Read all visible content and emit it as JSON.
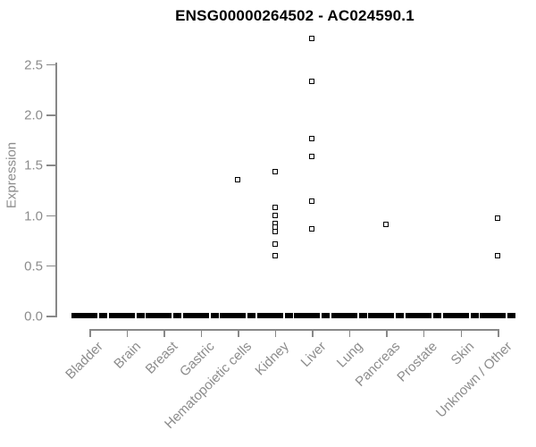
{
  "title": "ENSG00000264502 - AC024590.1",
  "colors": {
    "title": "#000000",
    "axis": "#888888",
    "axis_text": "#8c8c8c",
    "point_border": "#000000",
    "point_fill": "#ffffff",
    "zero_bar": "#000000",
    "background": "#ffffff"
  },
  "chart_data": {
    "type": "scatter",
    "title": "ENSG00000264502 - AC024590.1",
    "xlabel": "",
    "ylabel": "Expression",
    "ylim": [
      0,
      2.8
    ],
    "yticks": [
      "0.0",
      "0.5",
      "1.0",
      "1.5",
      "2.0",
      "2.5"
    ],
    "grid": false,
    "legend": "none",
    "point_marker": "open-square",
    "zero_cluster_note": "every category shows a dense cluster of points at expression 0, drawn as a thick dashed black bar",
    "categories": [
      "Bladder",
      "Brain",
      "Breast",
      "Gastric",
      "Hematopoietic cells",
      "Kidney",
      "Liver",
      "Lung",
      "Pancreas",
      "Prostate",
      "Skin",
      "Unknown / Other"
    ],
    "series": [
      {
        "category": "Bladder",
        "zero_cluster": true,
        "nonzero_values": []
      },
      {
        "category": "Brain",
        "zero_cluster": true,
        "nonzero_values": []
      },
      {
        "category": "Breast",
        "zero_cluster": true,
        "nonzero_values": []
      },
      {
        "category": "Gastric",
        "zero_cluster": true,
        "nonzero_values": []
      },
      {
        "category": "Hematopoietic cells",
        "zero_cluster": true,
        "nonzero_values": [
          1.35
        ]
      },
      {
        "category": "Kidney",
        "zero_cluster": true,
        "nonzero_values": [
          1.43,
          1.08,
          1.0,
          0.92,
          0.88,
          0.84,
          0.71,
          0.6
        ]
      },
      {
        "category": "Liver",
        "zero_cluster": true,
        "nonzero_values": [
          2.76,
          2.33,
          1.76,
          1.58,
          1.14,
          0.86
        ]
      },
      {
        "category": "Lung",
        "zero_cluster": true,
        "nonzero_values": []
      },
      {
        "category": "Pancreas",
        "zero_cluster": true,
        "nonzero_values": [
          0.91
        ]
      },
      {
        "category": "Prostate",
        "zero_cluster": true,
        "nonzero_values": []
      },
      {
        "category": "Skin",
        "zero_cluster": true,
        "nonzero_values": []
      },
      {
        "category": "Unknown / Other",
        "zero_cluster": true,
        "nonzero_values": [
          0.97,
          0.6
        ]
      }
    ]
  }
}
